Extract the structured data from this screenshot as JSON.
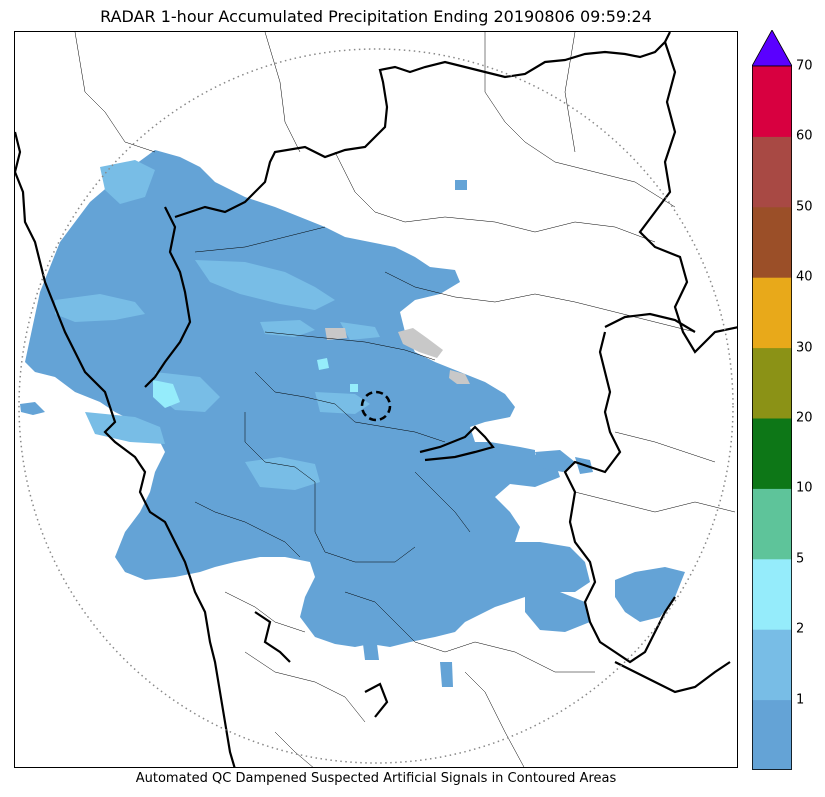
{
  "title": "RADAR 1-hour Accumulated Precipitation Ending 20190806 09:59:24",
  "caption": "Automated QC Dampened Suspected Artificial Signals in Contoured Areas",
  "colorbar": {
    "extend_max": true,
    "extend_color": "#5a00ff",
    "bins": [
      {
        "label": "1",
        "color": "#64a3d6"
      },
      {
        "label": "2",
        "color": "#78bde6"
      },
      {
        "label": "5",
        "color": "#95ecfb"
      },
      {
        "label": "10",
        "color": "#5ec49a"
      },
      {
        "label": "20",
        "color": "#0d7717"
      },
      {
        "label": "30",
        "color": "#8b9216"
      },
      {
        "label": "40",
        "color": "#e8a91a"
      },
      {
        "label": "50",
        "color": "#9b4f28"
      },
      {
        "label": "60",
        "color": "#a84944"
      },
      {
        "label": "70",
        "color": "#d80040"
      }
    ]
  },
  "colors": {
    "rain_light": "#64a3d6",
    "rain_moderate": "#78bde6",
    "rain_heavy": "#95ecfb",
    "clutter": "#c8c8c8",
    "coastline": "#000000",
    "border": "#000000",
    "range_ring": "#888888"
  }
}
